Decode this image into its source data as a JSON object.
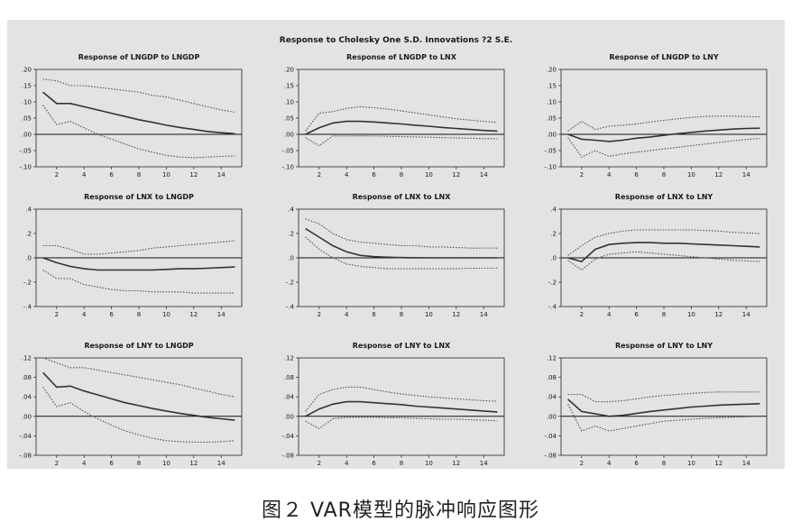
{
  "figure": {
    "title": "Response to Cholesky One S.D. Innovations ?2 S.E.",
    "caption": "图２ VAR模型的脉冲响应图形"
  },
  "colors": {
    "background": "#e3e3e3",
    "line": "#333333",
    "band": "#555555",
    "zero": "#111111"
  },
  "chart_data": [
    {
      "type": "line",
      "title": "Response of LNGDP to LNGDP",
      "ylim": [
        -0.1,
        0.2
      ],
      "yticks": [
        ".20",
        ".15",
        ".10",
        ".05",
        ".00",
        "-.05",
        "-.10"
      ],
      "x": [
        1,
        2,
        3,
        4,
        5,
        6,
        7,
        8,
        9,
        10,
        11,
        12,
        13,
        14,
        15
      ],
      "xticks": [
        "2",
        "4",
        "6",
        "8",
        "10",
        "12",
        "14"
      ],
      "series": [
        {
          "role": "response",
          "values": [
            0.13,
            0.095,
            0.095,
            0.085,
            0.075,
            0.065,
            0.055,
            0.045,
            0.037,
            0.028,
            0.021,
            0.015,
            0.009,
            0.005,
            0.002
          ]
        },
        {
          "role": "upper",
          "values": [
            0.17,
            0.165,
            0.15,
            0.15,
            0.145,
            0.14,
            0.135,
            0.13,
            0.12,
            0.115,
            0.105,
            0.095,
            0.085,
            0.075,
            0.068
          ]
        },
        {
          "role": "lower",
          "values": [
            0.09,
            0.03,
            0.04,
            0.02,
            0.0,
            -0.015,
            -0.03,
            -0.045,
            -0.055,
            -0.065,
            -0.07,
            -0.072,
            -0.07,
            -0.068,
            -0.066
          ]
        }
      ]
    },
    {
      "type": "line",
      "title": "Response of LNGDP to LNX",
      "ylim": [
        -0.1,
        0.2
      ],
      "yticks": [
        ".20",
        ".15",
        ".10",
        ".05",
        ".00",
        "-.05",
        "-.10"
      ],
      "x": [
        1,
        2,
        3,
        4,
        5,
        6,
        7,
        8,
        9,
        10,
        11,
        12,
        13,
        14,
        15
      ],
      "xticks": [
        "2",
        "4",
        "6",
        "8",
        "10",
        "12",
        "14"
      ],
      "series": [
        {
          "role": "response",
          "values": [
            0.0,
            0.02,
            0.035,
            0.04,
            0.04,
            0.038,
            0.035,
            0.032,
            0.028,
            0.025,
            0.021,
            0.018,
            0.015,
            0.012,
            0.01
          ]
        },
        {
          "role": "upper",
          "values": [
            0.01,
            0.065,
            0.07,
            0.08,
            0.085,
            0.082,
            0.078,
            0.072,
            0.066,
            0.06,
            0.054,
            0.048,
            0.044,
            0.04,
            0.037
          ]
        },
        {
          "role": "lower",
          "values": [
            -0.01,
            -0.035,
            -0.005,
            -0.005,
            -0.005,
            -0.005,
            -0.006,
            -0.007,
            -0.008,
            -0.009,
            -0.01,
            -0.011,
            -0.012,
            -0.013,
            -0.014
          ]
        }
      ]
    },
    {
      "type": "line",
      "title": "Response of LNGDP to LNY",
      "ylim": [
        -0.1,
        0.2
      ],
      "yticks": [
        ".20",
        ".15",
        ".10",
        ".05",
        ".00",
        "-.05",
        "-.10"
      ],
      "x": [
        1,
        2,
        3,
        4,
        5,
        6,
        7,
        8,
        9,
        10,
        11,
        12,
        13,
        14,
        15
      ],
      "xticks": [
        "2",
        "4",
        "6",
        "8",
        "10",
        "12",
        "14"
      ],
      "series": [
        {
          "role": "response",
          "values": [
            0.0,
            -0.015,
            -0.018,
            -0.022,
            -0.018,
            -0.012,
            -0.008,
            -0.003,
            0.002,
            0.006,
            0.01,
            0.013,
            0.016,
            0.018,
            0.019
          ]
        },
        {
          "role": "upper",
          "values": [
            0.01,
            0.04,
            0.015,
            0.025,
            0.028,
            0.032,
            0.038,
            0.043,
            0.048,
            0.052,
            0.055,
            0.056,
            0.056,
            0.055,
            0.054
          ]
        },
        {
          "role": "lower",
          "values": [
            -0.01,
            -0.07,
            -0.05,
            -0.068,
            -0.06,
            -0.055,
            -0.05,
            -0.045,
            -0.04,
            -0.035,
            -0.03,
            -0.025,
            -0.02,
            -0.016,
            -0.013
          ]
        }
      ]
    },
    {
      "type": "line",
      "title": "Response of LNX to LNGDP",
      "ylim": [
        -0.4,
        0.4
      ],
      "yticks": [
        ".4",
        ".2",
        ".0",
        "-.2",
        "-.4"
      ],
      "x": [
        1,
        2,
        3,
        4,
        5,
        6,
        7,
        8,
        9,
        10,
        11,
        12,
        13,
        14,
        15
      ],
      "xticks": [
        "2",
        "4",
        "6",
        "8",
        "10",
        "12",
        "14"
      ],
      "series": [
        {
          "role": "response",
          "values": [
            0.0,
            -0.04,
            -0.07,
            -0.09,
            -0.1,
            -0.1,
            -0.1,
            -0.1,
            -0.1,
            -0.095,
            -0.09,
            -0.09,
            -0.085,
            -0.08,
            -0.075
          ]
        },
        {
          "role": "upper",
          "values": [
            0.1,
            0.1,
            0.07,
            0.03,
            0.03,
            0.04,
            0.05,
            0.06,
            0.08,
            0.09,
            0.1,
            0.11,
            0.12,
            0.13,
            0.14
          ]
        },
        {
          "role": "lower",
          "values": [
            -0.1,
            -0.17,
            -0.17,
            -0.22,
            -0.24,
            -0.26,
            -0.27,
            -0.27,
            -0.28,
            -0.28,
            -0.28,
            -0.29,
            -0.29,
            -0.29,
            -0.29
          ]
        }
      ]
    },
    {
      "type": "line",
      "title": "Response of LNX to LNX",
      "ylim": [
        -0.4,
        0.4
      ],
      "yticks": [
        ".4",
        ".2",
        ".0",
        "-.2",
        "-.4"
      ],
      "x": [
        1,
        2,
        3,
        4,
        5,
        6,
        7,
        8,
        9,
        10,
        11,
        12,
        13,
        14,
        15
      ],
      "xticks": [
        "2",
        "4",
        "6",
        "8",
        "10",
        "12",
        "14"
      ],
      "series": [
        {
          "role": "response",
          "values": [
            0.24,
            0.17,
            0.1,
            0.05,
            0.02,
            0.01,
            0.005,
            0.002,
            0.001,
            0.0,
            0.0,
            0.0,
            0.0,
            0.0,
            0.0
          ]
        },
        {
          "role": "upper",
          "values": [
            0.32,
            0.28,
            0.2,
            0.15,
            0.13,
            0.12,
            0.11,
            0.1,
            0.1,
            0.09,
            0.09,
            0.085,
            0.08,
            0.08,
            0.08
          ]
        },
        {
          "role": "lower",
          "values": [
            0.17,
            0.07,
            0.0,
            -0.05,
            -0.07,
            -0.08,
            -0.09,
            -0.09,
            -0.09,
            -0.09,
            -0.09,
            -0.09,
            -0.085,
            -0.085,
            -0.085
          ]
        }
      ]
    },
    {
      "type": "line",
      "title": "Response of LNX to LNY",
      "ylim": [
        -0.4,
        0.4
      ],
      "yticks": [
        ".4",
        ".2",
        ".0",
        "-.2",
        "-.4"
      ],
      "x": [
        1,
        2,
        3,
        4,
        5,
        6,
        7,
        8,
        9,
        10,
        11,
        12,
        13,
        14,
        15
      ],
      "xticks": [
        "2",
        "4",
        "6",
        "8",
        "10",
        "12",
        "14"
      ],
      "series": [
        {
          "role": "response",
          "values": [
            0.0,
            -0.03,
            0.07,
            0.11,
            0.12,
            0.125,
            0.125,
            0.12,
            0.12,
            0.115,
            0.11,
            0.105,
            0.1,
            0.095,
            0.09
          ]
        },
        {
          "role": "upper",
          "values": [
            0.02,
            0.1,
            0.17,
            0.2,
            0.22,
            0.23,
            0.23,
            0.23,
            0.23,
            0.23,
            0.225,
            0.22,
            0.21,
            0.205,
            0.2
          ]
        },
        {
          "role": "lower",
          "values": [
            -0.02,
            -0.1,
            -0.01,
            0.03,
            0.04,
            0.05,
            0.04,
            0.03,
            0.02,
            0.01,
            0.0,
            -0.01,
            -0.02,
            -0.025,
            -0.03
          ]
        }
      ]
    },
    {
      "type": "line",
      "title": "Response of LNY to LNGDP",
      "ylim": [
        -0.08,
        0.12
      ],
      "yticks": [
        ".12",
        ".08",
        ".04",
        ".00",
        "-.04",
        "-.08"
      ],
      "x": [
        1,
        2,
        3,
        4,
        5,
        6,
        7,
        8,
        9,
        10,
        11,
        12,
        13,
        14,
        15
      ],
      "xticks": [
        "2",
        "4",
        "6",
        "8",
        "10",
        "12",
        "14"
      ],
      "series": [
        {
          "role": "response",
          "values": [
            0.09,
            0.06,
            0.062,
            0.052,
            0.044,
            0.036,
            0.028,
            0.022,
            0.016,
            0.011,
            0.006,
            0.002,
            -0.002,
            -0.005,
            -0.008
          ]
        },
        {
          "role": "upper",
          "values": [
            0.12,
            0.11,
            0.1,
            0.1,
            0.095,
            0.09,
            0.085,
            0.08,
            0.075,
            0.07,
            0.065,
            0.058,
            0.052,
            0.045,
            0.04
          ]
        },
        {
          "role": "lower",
          "values": [
            0.06,
            0.02,
            0.028,
            0.01,
            -0.005,
            -0.018,
            -0.03,
            -0.038,
            -0.045,
            -0.05,
            -0.052,
            -0.053,
            -0.053,
            -0.052,
            -0.05
          ]
        }
      ]
    },
    {
      "type": "line",
      "title": "Response of LNY to LNX",
      "ylim": [
        -0.08,
        0.12
      ],
      "yticks": [
        ".12",
        ".08",
        ".04",
        ".00",
        "-.04",
        "-.08"
      ],
      "x": [
        1,
        2,
        3,
        4,
        5,
        6,
        7,
        8,
        9,
        10,
        11,
        12,
        13,
        14,
        15
      ],
      "xticks": [
        "2",
        "4",
        "6",
        "8",
        "10",
        "12",
        "14"
      ],
      "series": [
        {
          "role": "response",
          "values": [
            0.0,
            0.015,
            0.025,
            0.03,
            0.03,
            0.028,
            0.026,
            0.024,
            0.021,
            0.019,
            0.017,
            0.015,
            0.013,
            0.011,
            0.009
          ]
        },
        {
          "role": "upper",
          "values": [
            0.01,
            0.045,
            0.055,
            0.06,
            0.06,
            0.055,
            0.05,
            0.046,
            0.043,
            0.04,
            0.038,
            0.036,
            0.034,
            0.032,
            0.031
          ]
        },
        {
          "role": "lower",
          "values": [
            -0.01,
            -0.025,
            -0.005,
            -0.002,
            -0.002,
            -0.002,
            -0.003,
            -0.003,
            -0.004,
            -0.005,
            -0.006,
            -0.006,
            -0.007,
            -0.008,
            -0.009
          ]
        }
      ]
    },
    {
      "type": "line",
      "title": "Response of LNY to LNY",
      "ylim": [
        -0.08,
        0.12
      ],
      "yticks": [
        ".12",
        ".08",
        ".04",
        ".00",
        "-.04",
        "-.08"
      ],
      "x": [
        1,
        2,
        3,
        4,
        5,
        6,
        7,
        8,
        9,
        10,
        11,
        12,
        13,
        14,
        15
      ],
      "xticks": [
        "2",
        "4",
        "6",
        "8",
        "10",
        "12",
        "14"
      ],
      "series": [
        {
          "role": "response",
          "values": [
            0.035,
            0.01,
            0.005,
            0.0,
            0.002,
            0.006,
            0.01,
            0.013,
            0.016,
            0.019,
            0.021,
            0.023,
            0.024,
            0.025,
            0.026
          ]
        },
        {
          "role": "upper",
          "values": [
            0.045,
            0.045,
            0.03,
            0.03,
            0.032,
            0.036,
            0.04,
            0.043,
            0.045,
            0.047,
            0.049,
            0.05,
            0.05,
            0.05,
            0.05
          ]
        },
        {
          "role": "lower",
          "values": [
            0.025,
            -0.03,
            -0.02,
            -0.03,
            -0.025,
            -0.02,
            -0.015,
            -0.01,
            -0.008,
            -0.006,
            -0.004,
            -0.003,
            -0.002,
            -0.001,
            0.0
          ]
        }
      ]
    }
  ]
}
